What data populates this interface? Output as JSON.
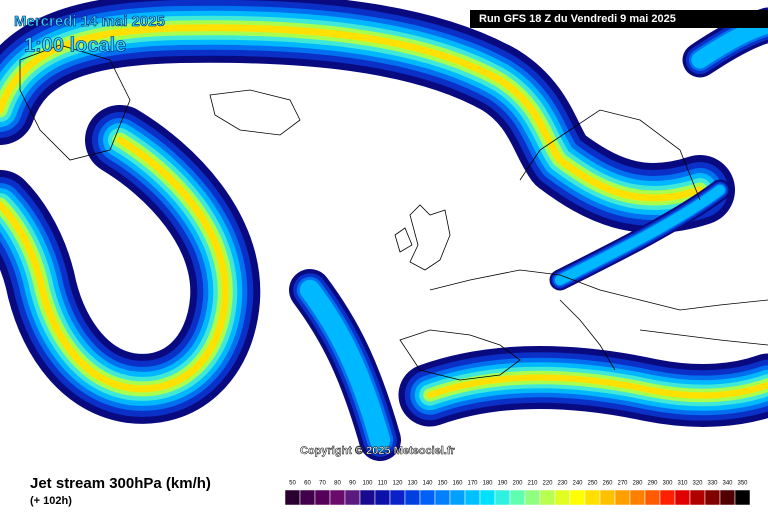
{
  "header": {
    "date": "Mercredi 14 mai 2025",
    "time": "1:00 locale",
    "run": "Run GFS 18 Z du Vendredi 9 mai 2025"
  },
  "copyright": "Copyright © 2025 Meteociel.fr",
  "footer": {
    "title": "Jet stream 300hPa (km/h)",
    "lead": "(+ 102h)"
  },
  "legend": {
    "labels": [
      50,
      60,
      70,
      80,
      90,
      100,
      110,
      120,
      130,
      140,
      150,
      160,
      170,
      180,
      190,
      200,
      210,
      220,
      230,
      240,
      250,
      260,
      270,
      280,
      290,
      300,
      310,
      320,
      330,
      340,
      350
    ],
    "colors": [
      "#2a0030",
      "#40004a",
      "#55005a",
      "#6a0a6a",
      "#5a1a80",
      "#1a0a90",
      "#0a10a8",
      "#0a20c8",
      "#0040e0",
      "#0060f8",
      "#0080ff",
      "#00a0ff",
      "#00c0ff",
      "#00e0ff",
      "#30f0e0",
      "#60ffb0",
      "#90ff80",
      "#b8ff50",
      "#e0ff20",
      "#ffff00",
      "#ffe000",
      "#ffc000",
      "#ffa000",
      "#ff8000",
      "#ff5a00",
      "#ff2000",
      "#e00000",
      "#b00000",
      "#800000",
      "#500000",
      "#000000"
    ]
  }
}
